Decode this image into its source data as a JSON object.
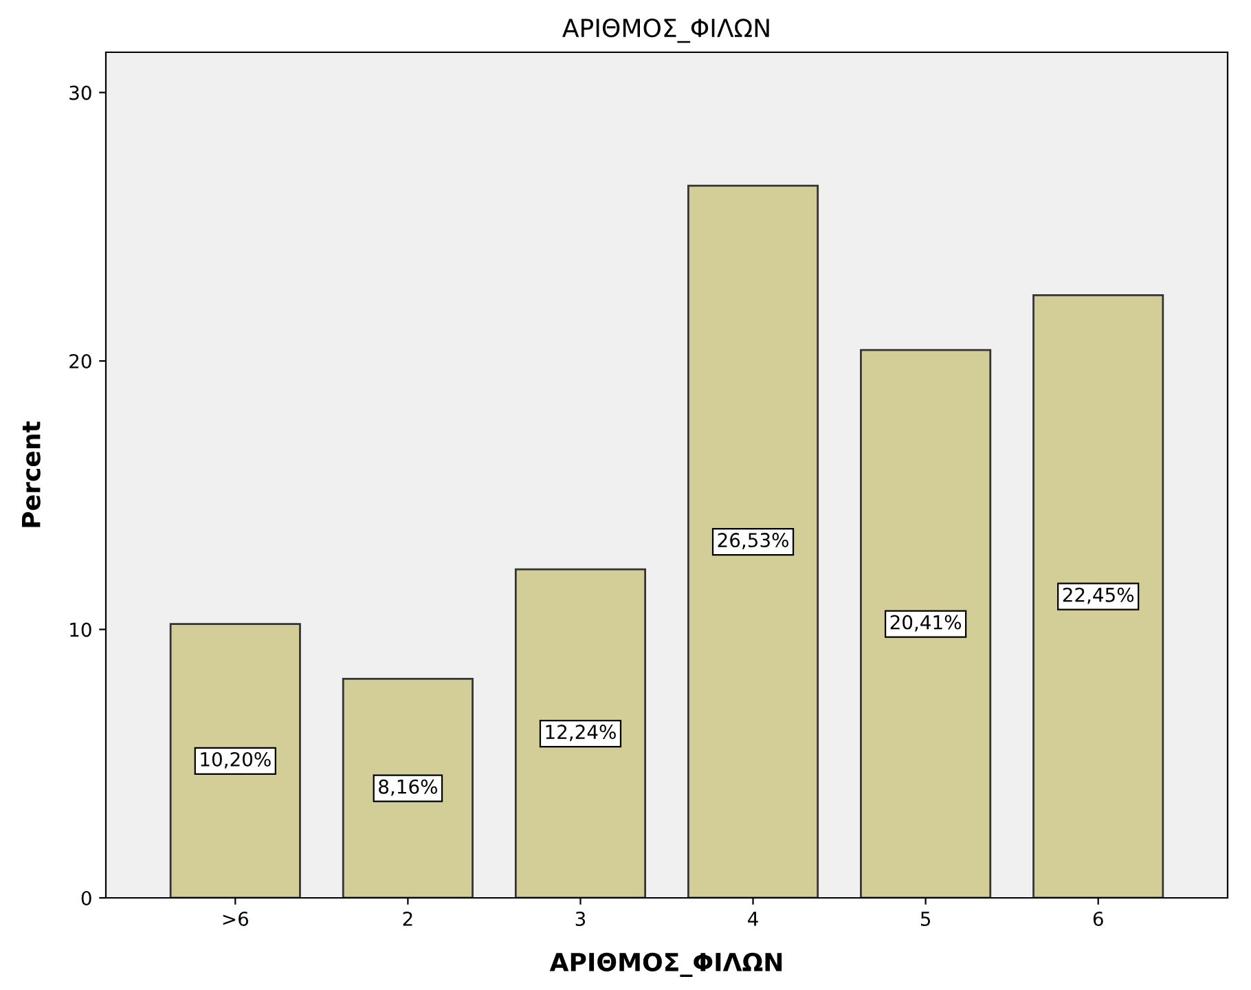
{
  "chart_data": {
    "type": "bar",
    "title": "ΑΡΙΘΜΟΣ_ΦΙΛΩΝ",
    "xlabel": "ΑΡΙΘΜΟΣ_ΦΙΛΩΝ",
    "ylabel": "Percent",
    "categories": [
      ">6",
      "2",
      "3",
      "4",
      "5",
      "6"
    ],
    "values": [
      10.2,
      8.16,
      12.24,
      26.53,
      20.41,
      22.45
    ],
    "value_labels": [
      "10,20%",
      "8,16%",
      "12,24%",
      "26,53%",
      "20,41%",
      "22,45%"
    ],
    "color": "#d3ce98",
    "ylim": [
      0,
      31.5
    ],
    "yticks": [
      0,
      10,
      20,
      30
    ],
    "grid": false
  }
}
